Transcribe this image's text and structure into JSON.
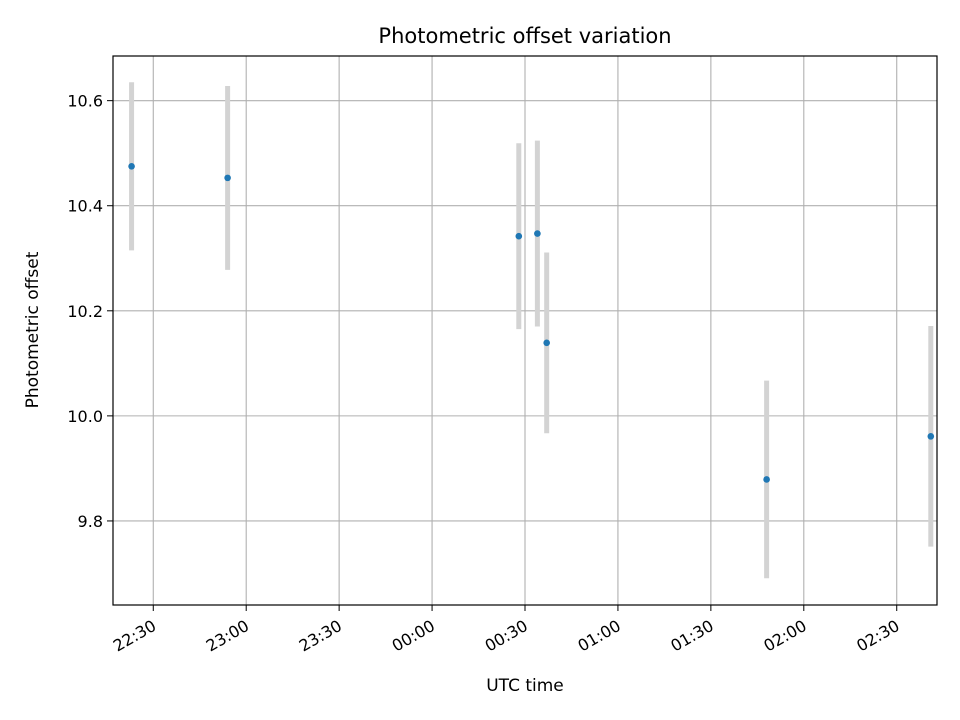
{
  "chart_data": {
    "type": "scatter",
    "title": "Photometric offset variation",
    "xlabel": "UTC time",
    "ylabel": "Photometric offset",
    "x_ticks": [
      "22:30",
      "23:00",
      "23:30",
      "00:00",
      "00:30",
      "01:00",
      "01:30",
      "02:00",
      "02:30"
    ],
    "y_ticks": [
      9.8,
      10.0,
      10.2,
      10.4,
      10.6
    ],
    "xlim": [
      "22:17",
      "02:43"
    ],
    "ylim": [
      9.64,
      10.685
    ],
    "grid": true,
    "point_color": "#1f77b4",
    "errorbar_color": "#d3d3d3",
    "points": [
      {
        "x": "22:23",
        "y": 10.475,
        "err": 0.16
      },
      {
        "x": "22:54",
        "y": 10.453,
        "err": 0.175
      },
      {
        "x": "00:28",
        "y": 10.342,
        "err": 0.177
      },
      {
        "x": "00:34",
        "y": 10.347,
        "err": 0.177
      },
      {
        "x": "00:37",
        "y": 10.139,
        "err": 0.172
      },
      {
        "x": "01:48",
        "y": 9.879,
        "err": 0.188
      },
      {
        "x": "02:41",
        "y": 9.961,
        "err": 0.21
      }
    ]
  }
}
